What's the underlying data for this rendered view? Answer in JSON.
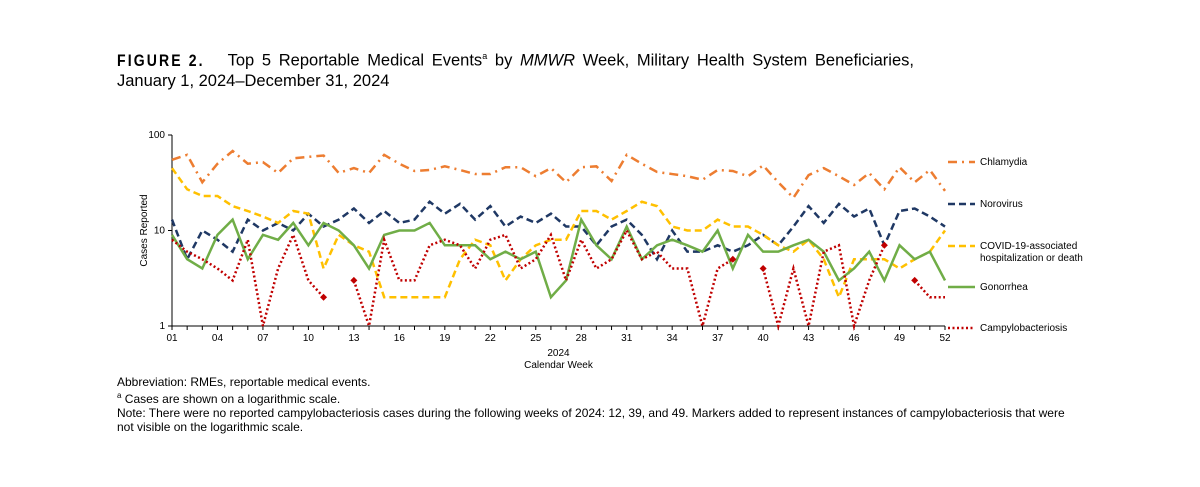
{
  "title": {
    "figure_label": "FIGURE 2.",
    "text_1": "Top 5 Reportable Medical Events",
    "sup": "a",
    "text_2": " by ",
    "italic": "MMWR",
    "text_3": " Week, Military Health System Beneficiaries, January 1, 2024–December 31, 2024"
  },
  "notes": {
    "abbreviation": "Abbreviation: RMEs, reportable medical events.",
    "footnote_mark": "a",
    "footnote": "Cases are shown on a logarithmic scale.",
    "note": "Note: There were no reported campylobacteriosis cases during the following weeks of 2024: 12, 39, and 49. Markers added to represent instances of campylobacteriosis that were not visible on the logarithmic scale."
  },
  "chart_data": {
    "type": "line",
    "ylabel": "Cases Reported",
    "xlabel": "Calendar Week",
    "xlabel_year": "2024",
    "y_scale": "log",
    "ylim": [
      1,
      100
    ],
    "y_ticks": [
      "1",
      "10",
      "100"
    ],
    "x_ticks": [
      "01",
      "04",
      "07",
      "10",
      "13",
      "16",
      "19",
      "22",
      "25",
      "28",
      "31",
      "34",
      "37",
      "40",
      "43",
      "46",
      "49",
      "52"
    ],
    "x": [
      1,
      2,
      3,
      4,
      5,
      6,
      7,
      8,
      9,
      10,
      11,
      12,
      13,
      14,
      15,
      16,
      17,
      18,
      19,
      20,
      21,
      22,
      23,
      24,
      25,
      26,
      27,
      28,
      29,
      30,
      31,
      32,
      33,
      34,
      35,
      36,
      37,
      38,
      39,
      40,
      41,
      42,
      43,
      44,
      45,
      46,
      47,
      48,
      49,
      50,
      51,
      52
    ],
    "legend_position": "right",
    "series": [
      {
        "name": "Chlamydia",
        "color": "#ED7D31",
        "style": "dash-dot",
        "values": [
          55,
          62,
          32,
          50,
          68,
          50,
          52,
          40,
          57,
          59,
          61,
          40,
          45,
          40,
          62,
          50,
          42,
          43,
          47,
          43,
          39,
          39,
          46,
          46,
          37,
          45,
          32,
          46,
          47,
          33,
          62,
          50,
          41,
          39,
          37,
          34,
          43,
          42,
          37,
          48,
          32,
          22,
          38,
          45,
          37,
          30,
          40,
          27,
          46,
          32,
          43,
          26
        ]
      },
      {
        "name": "Norovirus",
        "color": "#1F3864",
        "style": "dashed",
        "values": [
          13,
          5,
          10,
          8,
          6,
          13,
          10,
          12,
          10,
          15,
          11,
          13,
          17,
          12,
          16,
          12,
          13,
          20,
          15,
          19,
          13,
          18,
          11,
          14,
          12,
          15,
          11,
          11,
          7,
          11,
          13,
          9,
          5,
          10,
          6,
          6,
          7,
          6,
          7,
          9,
          7,
          11,
          18,
          12,
          19,
          14,
          17,
          7,
          16,
          17,
          14,
          11
        ]
      },
      {
        "name": "COVID-19-associated hospitalization or death",
        "color": "#FFC000",
        "style": "dashed",
        "values": [
          45,
          27,
          23,
          23,
          18,
          16,
          14,
          12,
          16,
          15,
          4,
          9,
          7,
          6,
          2,
          2,
          2,
          2,
          2,
          5,
          8,
          7,
          3,
          5,
          7,
          8,
          8,
          16,
          16,
          13,
          16,
          20,
          18,
          11,
          10,
          10,
          13,
          11,
          11,
          9,
          7,
          6,
          8,
          5,
          2,
          5,
          5,
          5,
          4,
          5,
          6,
          10
        ]
      },
      {
        "name": "Gonorrhea",
        "color": "#70AD47",
        "style": "solid",
        "values": [
          9,
          5,
          4,
          9,
          13,
          5,
          9,
          8,
          12,
          7,
          12,
          10,
          7,
          4,
          9,
          10,
          10,
          12,
          7,
          7,
          7,
          5,
          6,
          5,
          6,
          2,
          3,
          13,
          7,
          5,
          11,
          5,
          7,
          8,
          7,
          6,
          10,
          4,
          9,
          6,
          6,
          7,
          8,
          6,
          3,
          4,
          6,
          3,
          7,
          5,
          6,
          3
        ]
      },
      {
        "name": "Campylobacteriosis",
        "color": "#C00000",
        "style": "dotted",
        "values": [
          8,
          6,
          5,
          4,
          3,
          8,
          1,
          4,
          9,
          3,
          2,
          0,
          3,
          1,
          8,
          3,
          3,
          7,
          8,
          7,
          4,
          8,
          9,
          4,
          5,
          9,
          3,
          8,
          4,
          5,
          10,
          5,
          6,
          4,
          4,
          1,
          4,
          5,
          0,
          4,
          1,
          4,
          1,
          6,
          7,
          1,
          3,
          7,
          0,
          3,
          2,
          2
        ],
        "marker_weeks": [
          11,
          13,
          38,
          40,
          48,
          50
        ],
        "marker_color": "#C00000"
      }
    ]
  }
}
